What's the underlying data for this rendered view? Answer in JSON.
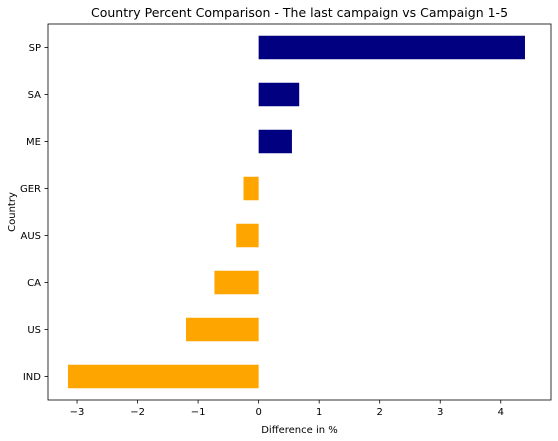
{
  "chart_data": {
    "type": "bar",
    "orientation": "horizontal",
    "title": "Country Percent Comparison - The last campaign vs Campaign 1-5",
    "xlabel": "Difference in %",
    "ylabel": "Country",
    "categories": [
      "SP",
      "SA",
      "ME",
      "GER",
      "AUS",
      "CA",
      "US",
      "IND"
    ],
    "values": [
      4.4,
      0.67,
      0.55,
      -0.25,
      -0.37,
      -0.73,
      -1.2,
      -3.15
    ],
    "xlim": [
      -3.48,
      4.83
    ],
    "xticks": [
      -3,
      -2,
      -1,
      0,
      1,
      2,
      3,
      4
    ],
    "grid": false,
    "colors": {
      "positive": "#000080",
      "negative": "#ffa500"
    }
  }
}
